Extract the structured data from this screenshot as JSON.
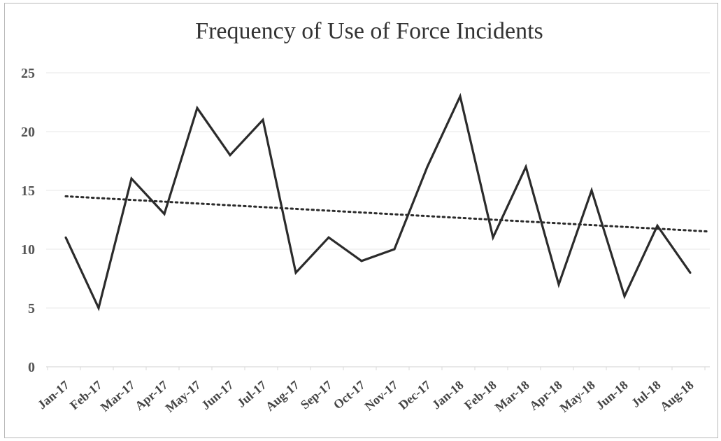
{
  "chart_data": {
    "type": "line",
    "title": "Frequency of Use of Force Incidents",
    "xlabel": "",
    "ylabel": "",
    "ylim": [
      0,
      25
    ],
    "yticks": [
      0,
      5,
      10,
      15,
      20,
      25
    ],
    "grid": true,
    "legend": "none",
    "categories": [
      "Jan-17",
      "Feb-17",
      "Mar-17",
      "Apr-17",
      "May-17",
      "Jun-17",
      "Jul-17",
      "Aug-17",
      "Sep-17",
      "Oct-17",
      "Nov-17",
      "Dec-17",
      "Jan-18",
      "Feb-18",
      "Mar-18",
      "Apr-18",
      "May-18",
      "Jun-18",
      "Jul-18",
      "Aug-18"
    ],
    "series": [
      {
        "values": [
          11,
          5,
          16,
          13,
          22,
          18,
          21,
          8,
          11,
          9,
          10,
          17,
          23,
          11,
          17,
          7,
          15,
          6,
          12,
          8
        ],
        "color": "#2b2b2b",
        "style": "solid"
      }
    ],
    "trendline": {
      "type": "linear",
      "start_value": 14.5,
      "end_value": 11.5,
      "color": "#2b2b2b",
      "style": "dotted"
    }
  }
}
